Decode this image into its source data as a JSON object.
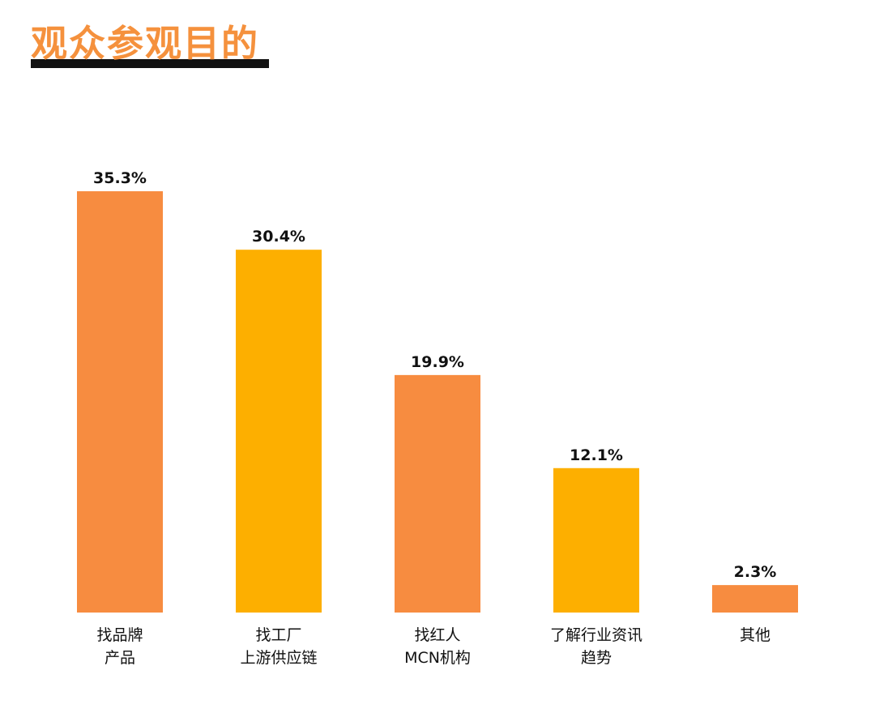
{
  "title": "观众参观目的",
  "colors": {
    "title": "#f5913d",
    "title_underline": "#111111",
    "bar_orange": "#f78c40",
    "bar_yellow": "#fdaf00",
    "text": "#111111"
  },
  "chart_data": {
    "type": "bar",
    "title": "观众参观目的",
    "xlabel": "",
    "ylabel": "",
    "grid": false,
    "legend": "none",
    "unit": "%",
    "categories": [
      [
        "找品牌",
        "产品"
      ],
      [
        "找工厂",
        "上游供应链"
      ],
      [
        "找红人",
        "MCN机构"
      ],
      [
        "了解行业资讯",
        "趋势"
      ],
      [
        "其他"
      ]
    ],
    "values": [
      35.3,
      30.4,
      19.9,
      12.1,
      2.3
    ],
    "value_labels": [
      "35.3%",
      "30.4%",
      "19.9%",
      "12.1%",
      "2.3%"
    ],
    "bar_colors": [
      "#f78c40",
      "#fdaf00",
      "#f78c40",
      "#fdaf00",
      "#f78c40"
    ]
  }
}
